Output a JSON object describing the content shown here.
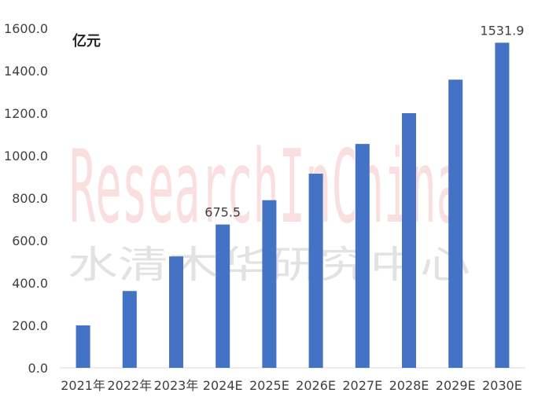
{
  "chart_data": {
    "type": "bar",
    "unit_label": "亿元",
    "categories": [
      "2021年",
      "2022年",
      "2023年",
      "2024E",
      "2025E",
      "2026E",
      "2027E",
      "2028E",
      "2029E",
      "2030E"
    ],
    "values": [
      200,
      362,
      525,
      675.5,
      790,
      915,
      1055,
      1200,
      1358,
      1531.9
    ],
    "data_labels": {
      "3": "675.5",
      "9": "1531.9"
    },
    "ylim": [
      0,
      1600
    ],
    "yticks": [
      0,
      200,
      400,
      600,
      800,
      1000,
      1200,
      1400,
      1600
    ],
    "ytick_labels": [
      "0.0",
      "200.0",
      "400.0",
      "600.0",
      "800.0",
      "1000.0",
      "1200.0",
      "1400.0",
      "1600.0"
    ],
    "grid": false,
    "bar_color": "#4472C4"
  },
  "watermark": {
    "english": "ResearchInChina",
    "chinese": "水清木华研究中心"
  }
}
